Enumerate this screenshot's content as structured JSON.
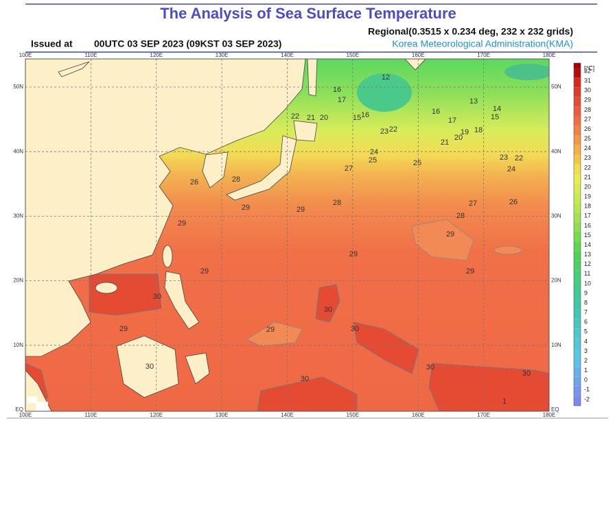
{
  "header": {
    "title": "The Analysis of Sea Surface Temperature",
    "issued_label": "Issued at",
    "issued_time": "00UTC 03 SEP 2023 (09KST 03 SEP 2023)",
    "grid_info": "Regional(0.3515 x 0.234 deg, 232 x 232 grids)",
    "agency": "Korea Meteorological Administration(KMA)"
  },
  "map": {
    "longitude_labels": [
      "100E",
      "110E",
      "120E",
      "130E",
      "140E",
      "150E",
      "160E",
      "170E",
      "180E"
    ],
    "latitude_labels": [
      "EQ",
      "10N",
      "20N",
      "30N",
      "40N",
      "50N"
    ],
    "contour_labels": [
      "12",
      "16",
      "17",
      "20",
      "21",
      "22",
      "15",
      "16",
      "23",
      "22",
      "13",
      "14",
      "15",
      "16",
      "17",
      "18",
      "19",
      "20",
      "21",
      "23",
      "22",
      "24",
      "25",
      "26",
      "27",
      "24",
      "25",
      "26",
      "27",
      "28",
      "28",
      "28",
      "29",
      "29",
      "29",
      "29",
      "29",
      "29",
      "29",
      "30",
      "30",
      "30",
      "30",
      "30",
      "30",
      "29",
      "29",
      "30",
      "1"
    ]
  },
  "legend": {
    "unit": "[℃]",
    "labels": [
      "32",
      "31",
      "30",
      "29",
      "28",
      "27",
      "26",
      "25",
      "24",
      "23",
      "22",
      "21",
      "20",
      "19",
      "18",
      "17",
      "16",
      "15",
      "14",
      "13",
      "12",
      "11",
      "10",
      "9",
      "8",
      "7",
      "6",
      "5",
      "4",
      "3",
      "2",
      "1",
      "0",
      "-1",
      "-2"
    ]
  }
}
